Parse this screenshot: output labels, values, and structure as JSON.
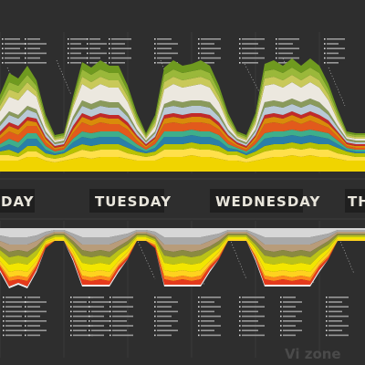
{
  "chart_data": {
    "type": "area",
    "title": "",
    "xlabel": "",
    "ylabel": "",
    "stacked": true,
    "grid": true,
    "day_labels": [
      "DAY",
      "TUESDAY",
      "WEDNESDAY",
      "TH"
    ],
    "watermark": "Vi zone",
    "upper_panel": {
      "layer_colors": [
        "#f0d400",
        "#ffe04a",
        "#b8c200",
        "#2a7fa8",
        "#3fae8a",
        "#e25a1c",
        "#d98b0a",
        "#c22a2a",
        "#b9c9d6",
        "#8a9a5b",
        "#ece8df",
        "#c9c95a",
        "#9ab83a",
        "#6f9a1f"
      ],
      "layer_values": [
        [
          6,
          6,
          6,
          8,
          8,
          6,
          5,
          6,
          7,
          8,
          7,
          8,
          8,
          8,
          7,
          6,
          6,
          6,
          8,
          8,
          8,
          9,
          8,
          8,
          7,
          6,
          6,
          5,
          6,
          7,
          8,
          8,
          9,
          8,
          9,
          8,
          8,
          7,
          6,
          6,
          6
        ],
        [
          3,
          3,
          2,
          3,
          3,
          2,
          2,
          2,
          3,
          4,
          4,
          4,
          4,
          4,
          3,
          3,
          2,
          3,
          4,
          4,
          4,
          4,
          4,
          4,
          4,
          3,
          3,
          2,
          3,
          4,
          4,
          4,
          4,
          4,
          4,
          4,
          4,
          3,
          3,
          2,
          2
        ],
        [
          2,
          3,
          2,
          3,
          3,
          2,
          2,
          2,
          3,
          3,
          3,
          3,
          3,
          3,
          3,
          2,
          2,
          2,
          3,
          3,
          3,
          3,
          3,
          3,
          3,
          2,
          2,
          2,
          2,
          3,
          3,
          3,
          3,
          3,
          3,
          3,
          3,
          3,
          2,
          2,
          2
        ],
        [
          2,
          3,
          3,
          4,
          4,
          2,
          1,
          1,
          3,
          4,
          4,
          4,
          4,
          4,
          3,
          2,
          1,
          2,
          4,
          4,
          4,
          4,
          4,
          4,
          3,
          2,
          1,
          1,
          2,
          4,
          4,
          4,
          4,
          4,
          4,
          4,
          3,
          2,
          1,
          1,
          1
        ],
        [
          2,
          3,
          3,
          3,
          3,
          2,
          1,
          1,
          2,
          3,
          3,
          3,
          3,
          3,
          3,
          2,
          1,
          2,
          3,
          3,
          3,
          3,
          3,
          3,
          3,
          2,
          1,
          1,
          2,
          3,
          3,
          3,
          3,
          3,
          3,
          3,
          3,
          2,
          1,
          1,
          1
        ],
        [
          3,
          4,
          4,
          4,
          4,
          2,
          1,
          1,
          3,
          5,
          4,
          5,
          4,
          4,
          4,
          2,
          1,
          2,
          4,
          5,
          4,
          4,
          5,
          4,
          3,
          2,
          1,
          1,
          2,
          5,
          5,
          4,
          5,
          4,
          5,
          4,
          3,
          2,
          1,
          1,
          1
        ],
        [
          2,
          3,
          3,
          3,
          2,
          2,
          1,
          1,
          2,
          3,
          3,
          3,
          3,
          3,
          2,
          2,
          1,
          1,
          3,
          3,
          3,
          3,
          3,
          3,
          2,
          2,
          1,
          1,
          2,
          3,
          3,
          3,
          3,
          3,
          3,
          3,
          2,
          2,
          1,
          1,
          1
        ],
        [
          2,
          2,
          2,
          2,
          2,
          1,
          1,
          1,
          2,
          2,
          2,
          2,
          2,
          2,
          2,
          1,
          1,
          1,
          2,
          2,
          2,
          2,
          2,
          2,
          2,
          1,
          1,
          1,
          1,
          2,
          2,
          2,
          2,
          2,
          2,
          2,
          2,
          1,
          1,
          1,
          1
        ],
        [
          3,
          4,
          4,
          4,
          3,
          2,
          1,
          1,
          3,
          4,
          4,
          4,
          4,
          4,
          3,
          2,
          1,
          2,
          4,
          4,
          4,
          4,
          4,
          4,
          3,
          2,
          1,
          1,
          2,
          4,
          4,
          4,
          4,
          4,
          4,
          4,
          3,
          2,
          1,
          1,
          1
        ],
        [
          2,
          2,
          2,
          2,
          2,
          1,
          1,
          1,
          2,
          3,
          3,
          3,
          3,
          3,
          2,
          1,
          1,
          1,
          2,
          3,
          3,
          3,
          3,
          3,
          2,
          1,
          1,
          1,
          1,
          3,
          3,
          3,
          3,
          3,
          3,
          3,
          2,
          1,
          1,
          1,
          1
        ],
        [
          6,
          8,
          8,
          9,
          7,
          3,
          1,
          1,
          5,
          9,
          8,
          9,
          8,
          8,
          6,
          3,
          1,
          3,
          8,
          9,
          8,
          8,
          9,
          8,
          6,
          3,
          1,
          1,
          3,
          9,
          9,
          8,
          9,
          8,
          9,
          8,
          6,
          3,
          1,
          1,
          1
        ],
        [
          3,
          4,
          4,
          4,
          3,
          2,
          1,
          1,
          2,
          4,
          4,
          4,
          4,
          4,
          3,
          2,
          1,
          2,
          4,
          4,
          4,
          4,
          4,
          4,
          3,
          2,
          1,
          1,
          2,
          4,
          4,
          4,
          4,
          4,
          4,
          4,
          3,
          2,
          1,
          1,
          1
        ],
        [
          3,
          4,
          4,
          4,
          3,
          2,
          1,
          1,
          2,
          4,
          4,
          4,
          4,
          4,
          3,
          2,
          1,
          2,
          4,
          4,
          4,
          4,
          4,
          4,
          3,
          2,
          1,
          1,
          2,
          4,
          4,
          4,
          4,
          4,
          4,
          4,
          3,
          2,
          1,
          1,
          1
        ],
        [
          3,
          5,
          4,
          5,
          3,
          2,
          1,
          1,
          2,
          4,
          4,
          5,
          4,
          4,
          3,
          2,
          1,
          2,
          4,
          5,
          4,
          4,
          5,
          4,
          3,
          2,
          1,
          1,
          2,
          4,
          5,
          4,
          5,
          4,
          5,
          4,
          3,
          2,
          1,
          1,
          1
        ]
      ]
    },
    "lower_panel": {
      "layer_colors": [
        "#d7d7d7",
        "#a9a9a9",
        "#b89c7a",
        "#8a8a40",
        "#b9c21a",
        "#f2e600",
        "#ffd21f",
        "#ff8a1a",
        "#e53a1c",
        "#f0f0f0"
      ],
      "layer_values": [
        [
          4,
          5,
          5,
          5,
          4,
          2,
          1,
          1,
          3,
          5,
          5,
          5,
          5,
          4,
          3,
          1,
          1,
          2,
          5,
          5,
          5,
          5,
          5,
          4,
          3,
          1,
          1,
          1,
          3,
          5,
          5,
          5,
          5,
          5,
          5,
          4,
          3,
          1,
          1,
          1,
          1
        ],
        [
          3,
          4,
          4,
          4,
          3,
          2,
          1,
          1,
          2,
          4,
          4,
          4,
          4,
          3,
          2,
          1,
          1,
          2,
          4,
          4,
          4,
          4,
          4,
          3,
          2,
          1,
          1,
          1,
          2,
          4,
          4,
          4,
          4,
          4,
          4,
          3,
          2,
          1,
          1,
          1,
          1
        ],
        [
          3,
          4,
          3,
          4,
          3,
          1,
          1,
          1,
          2,
          3,
          4,
          3,
          4,
          3,
          2,
          1,
          1,
          1,
          3,
          4,
          3,
          4,
          3,
          3,
          2,
          1,
          1,
          1,
          2,
          3,
          4,
          3,
          4,
          3,
          4,
          3,
          2,
          1,
          1,
          1,
          1
        ],
        [
          2,
          3,
          3,
          3,
          2,
          1,
          1,
          1,
          2,
          3,
          3,
          3,
          3,
          2,
          2,
          1,
          1,
          1,
          3,
          3,
          3,
          3,
          3,
          2,
          2,
          1,
          1,
          1,
          2,
          3,
          3,
          3,
          3,
          3,
          3,
          2,
          2,
          1,
          1,
          1,
          1
        ],
        [
          3,
          4,
          4,
          4,
          3,
          1,
          1,
          1,
          2,
          4,
          4,
          4,
          4,
          3,
          2,
          1,
          1,
          1,
          4,
          4,
          4,
          4,
          4,
          3,
          2,
          1,
          1,
          1,
          2,
          4,
          4,
          4,
          4,
          4,
          4,
          3,
          2,
          1,
          1,
          1,
          1
        ],
        [
          3,
          4,
          4,
          4,
          3,
          1,
          1,
          1,
          2,
          4,
          4,
          4,
          4,
          3,
          2,
          1,
          1,
          1,
          4,
          4,
          4,
          4,
          4,
          3,
          2,
          1,
          1,
          1,
          2,
          4,
          4,
          4,
          4,
          4,
          4,
          3,
          2,
          1,
          1,
          1,
          1
        ],
        [
          2,
          3,
          3,
          3,
          2,
          1,
          1,
          1,
          2,
          3,
          3,
          3,
          3,
          2,
          2,
          1,
          1,
          1,
          3,
          3,
          3,
          3,
          3,
          2,
          2,
          1,
          1,
          1,
          2,
          3,
          3,
          3,
          3,
          3,
          3,
          2,
          2,
          1,
          1,
          1,
          1
        ],
        [
          1,
          2,
          2,
          2,
          1,
          1,
          0,
          0,
          1,
          2,
          2,
          2,
          2,
          1,
          1,
          0,
          0,
          1,
          2,
          2,
          2,
          2,
          2,
          1,
          1,
          0,
          0,
          0,
          1,
          2,
          2,
          2,
          2,
          2,
          2,
          1,
          1,
          0,
          0,
          0,
          0
        ],
        [
          2,
          3,
          2,
          3,
          2,
          1,
          0,
          0,
          1,
          3,
          2,
          3,
          2,
          2,
          1,
          0,
          0,
          1,
          3,
          2,
          3,
          2,
          3,
          2,
          1,
          0,
          0,
          0,
          1,
          3,
          2,
          3,
          2,
          3,
          2,
          2,
          1,
          0,
          0,
          0,
          0
        ],
        [
          1,
          1,
          1,
          1,
          1,
          0,
          0,
          0,
          1,
          1,
          1,
          1,
          1,
          1,
          0,
          0,
          0,
          0,
          1,
          1,
          1,
          1,
          1,
          1,
          0,
          0,
          0,
          0,
          1,
          1,
          1,
          1,
          1,
          1,
          1,
          1,
          0,
          0,
          0,
          0,
          0
        ]
      ]
    }
  }
}
